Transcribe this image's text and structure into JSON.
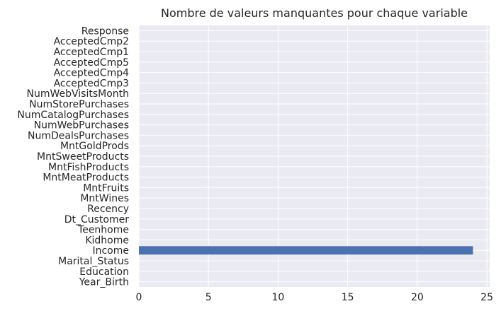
{
  "chart_data": {
    "type": "bar",
    "orientation": "horizontal",
    "title": "Nombre de valeurs manquantes pour chaque variable",
    "xlabel": "",
    "ylabel": "",
    "xlim": [
      0,
      25.2
    ],
    "xticks": [
      0,
      5,
      10,
      15,
      20,
      25
    ],
    "grid": true,
    "categories": [
      "Year_Birth",
      "Education",
      "Marital_Status",
      "Income",
      "Kidhome",
      "Teenhome",
      "Dt_Customer",
      "Recency",
      "MntWines",
      "MntFruits",
      "MntMeatProducts",
      "MntFishProducts",
      "MntSweetProducts",
      "MntGoldProds",
      "NumDealsPurchases",
      "NumWebPurchases",
      "NumCatalogPurchases",
      "NumStorePurchases",
      "NumWebVisitsMonth",
      "AcceptedCmp3",
      "AcceptedCmp4",
      "AcceptedCmp5",
      "AcceptedCmp1",
      "AcceptedCmp2",
      "Response"
    ],
    "values": [
      0,
      0,
      0,
      24,
      0,
      0,
      0,
      0,
      0,
      0,
      0,
      0,
      0,
      0,
      0,
      0,
      0,
      0,
      0,
      0,
      0,
      0,
      0,
      0,
      0
    ],
    "bar_color": "#4c72b0",
    "background_color": "#eaeaf2",
    "grid_color": "#ffffff"
  }
}
